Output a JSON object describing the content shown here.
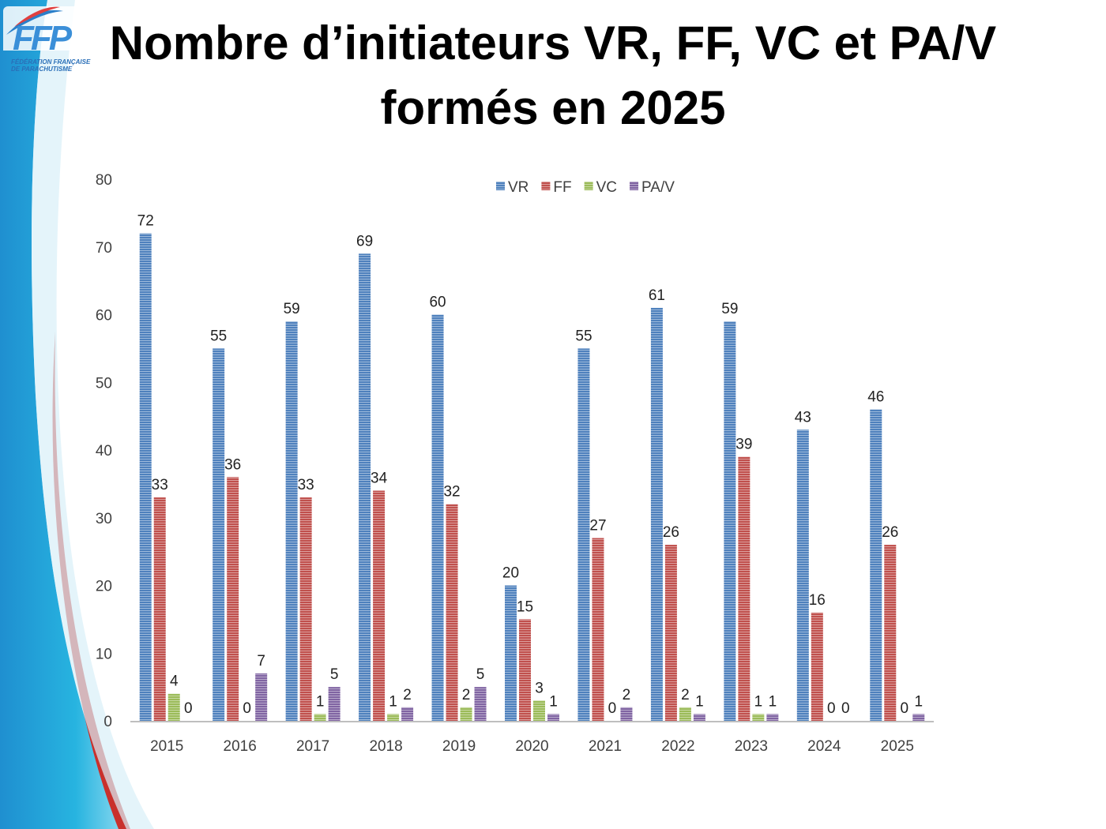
{
  "slide": {
    "title_line1": "Nombre d’initiateurs VR, FF, VC et PA/V",
    "title_line2": "formés en 2025",
    "logo": {
      "letters": "FFP",
      "line1": "FÉDÉRATION FRANÇAISE",
      "line2": "DE PARACHUTISME"
    }
  },
  "chart_data": {
    "type": "bar",
    "title": "Nombre d’initiateurs VR, FF, VC et PA/V formés en 2025",
    "xlabel": "",
    "ylabel": "",
    "ylim": [
      0,
      80
    ],
    "yticks": [
      0,
      10,
      20,
      30,
      40,
      50,
      60,
      70,
      80
    ],
    "grid": false,
    "legend_position": "top",
    "categories": [
      "2015",
      "2016",
      "2017",
      "2018",
      "2019",
      "2020",
      "2021",
      "2022",
      "2023",
      "2024",
      "2025"
    ],
    "series": [
      {
        "name": "VR",
        "color": "#4f81bd",
        "values": [
          72,
          55,
          59,
          69,
          60,
          20,
          55,
          61,
          59,
          43,
          46
        ]
      },
      {
        "name": "FF",
        "color": "#c0504d",
        "values": [
          33,
          36,
          33,
          34,
          32,
          15,
          27,
          26,
          39,
          16,
          26
        ]
      },
      {
        "name": "VC",
        "color": "#9bbb59",
        "values": [
          4,
          0,
          1,
          1,
          2,
          3,
          0,
          2,
          1,
          0,
          0
        ]
      },
      {
        "name": "PA/V",
        "color": "#8064a2",
        "values": [
          0,
          7,
          5,
          2,
          5,
          1,
          2,
          1,
          1,
          0,
          1
        ]
      }
    ]
  }
}
